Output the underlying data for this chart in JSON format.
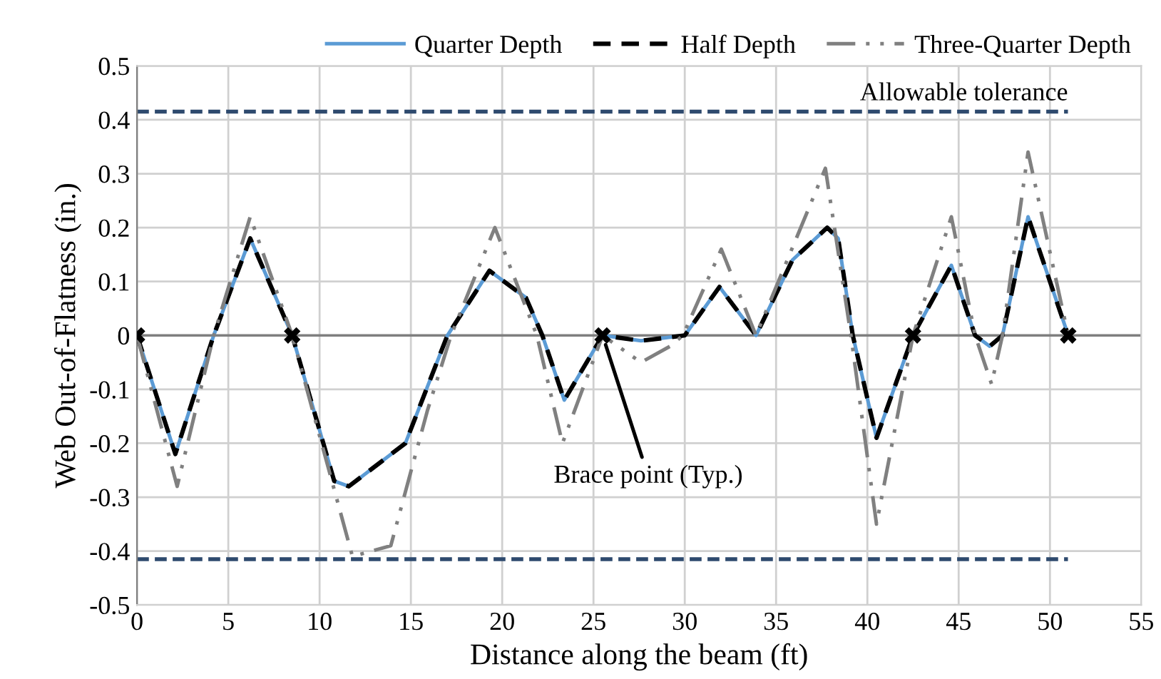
{
  "chart_data": {
    "type": "line",
    "xlabel": "Distance along the beam (ft)",
    "ylabel": "Web Out-of-Flatness (in.)",
    "xlim": [
      0,
      55
    ],
    "xticks": [
      0,
      5,
      10,
      15,
      20,
      25,
      30,
      35,
      40,
      45,
      50,
      55
    ],
    "ylim": [
      -0.5,
      0.5
    ],
    "yticks": [
      -0.5,
      -0.4,
      -0.3,
      -0.2,
      -0.1,
      0,
      0.1,
      0.2,
      0.3,
      0.4,
      0.5
    ],
    "grid": true,
    "legend": "top",
    "series": [
      {
        "name": "Quarter Depth",
        "color": "#5b9bd5",
        "line_style": "solid",
        "x": [
          0,
          2.1,
          4.2,
          6.2,
          8.5,
          10.8,
          11.6,
          14.7,
          17.0,
          19.3,
          21.3,
          22.2,
          23.4,
          25.5,
          27.6,
          30.0,
          31.9,
          33.9,
          35.9,
          37.8,
          38.4,
          39.2,
          40.5,
          42.5,
          44.6,
          45.9,
          46.7,
          47.4,
          48.8,
          51.0
        ],
        "values": [
          0,
          -0.22,
          0,
          0.18,
          0,
          -0.27,
          -0.28,
          -0.2,
          0,
          0.12,
          0.07,
          0,
          -0.12,
          0,
          -0.01,
          0,
          0.09,
          0,
          0.14,
          0.2,
          0.18,
          0,
          -0.19,
          0,
          0.13,
          0,
          -0.02,
          0,
          0.22,
          0
        ]
      },
      {
        "name": "Half Depth",
        "color": "#000000",
        "line_style": "dashed",
        "x": [
          0,
          2.1,
          4.2,
          6.2,
          8.5,
          10.8,
          11.6,
          14.7,
          17.0,
          19.3,
          21.3,
          22.2,
          23.4,
          25.5,
          27.6,
          30.0,
          31.9,
          33.9,
          35.9,
          37.8,
          38.4,
          39.2,
          40.5,
          42.5,
          44.6,
          45.9,
          46.7,
          47.4,
          48.8,
          51.0
        ],
        "values": [
          0,
          -0.22,
          0,
          0.18,
          0,
          -0.27,
          -0.28,
          -0.2,
          0,
          0.12,
          0.07,
          0,
          -0.12,
          0,
          -0.01,
          0,
          0.09,
          0,
          0.14,
          0.2,
          0.18,
          0,
          -0.19,
          0,
          0.13,
          0,
          -0.02,
          0,
          0.22,
          0
        ]
      },
      {
        "name": "Three-Quarter Depth",
        "color": "#808080",
        "line_style": "dotted",
        "x": [
          0,
          2.2,
          4.2,
          6.2,
          8.5,
          11.8,
          13.9,
          15.9,
          17.2,
          19.6,
          21.9,
          23.3,
          25.5,
          27.6,
          29.2,
          29.9,
          32.0,
          33.9,
          37.7,
          39.1,
          40.5,
          42.5,
          44.6,
          45.9,
          46.8,
          47.4,
          48.8,
          51.0
        ],
        "values": [
          0,
          -0.28,
          0,
          0.22,
          0,
          -0.41,
          -0.39,
          -0.14,
          0,
          0.2,
          0,
          -0.2,
          0,
          -0.05,
          -0.02,
          0,
          0.16,
          0,
          0.31,
          0,
          -0.35,
          0,
          0.22,
          0,
          -0.09,
          0,
          0.34,
          0
        ]
      },
      {
        "type": "scatter",
        "color": "#000000",
        "marker": "cross",
        "x": [
          0,
          8.5,
          25.5,
          42.5,
          51.0
        ],
        "values": [
          0,
          0,
          0,
          0,
          0
        ]
      }
    ],
    "ref_lines": [
      {
        "axis": "y",
        "value": 0.415,
        "label": "Allowable tolerance",
        "color": "#2e4a6e",
        "line_style": "dashed"
      },
      {
        "axis": "y",
        "value": -0.415,
        "color": "#2e4a6e",
        "line_style": "dashed"
      }
    ],
    "annotations": [
      {
        "text": "Brace point (Typ.)",
        "x": 25.5,
        "y": 0
      }
    ]
  }
}
